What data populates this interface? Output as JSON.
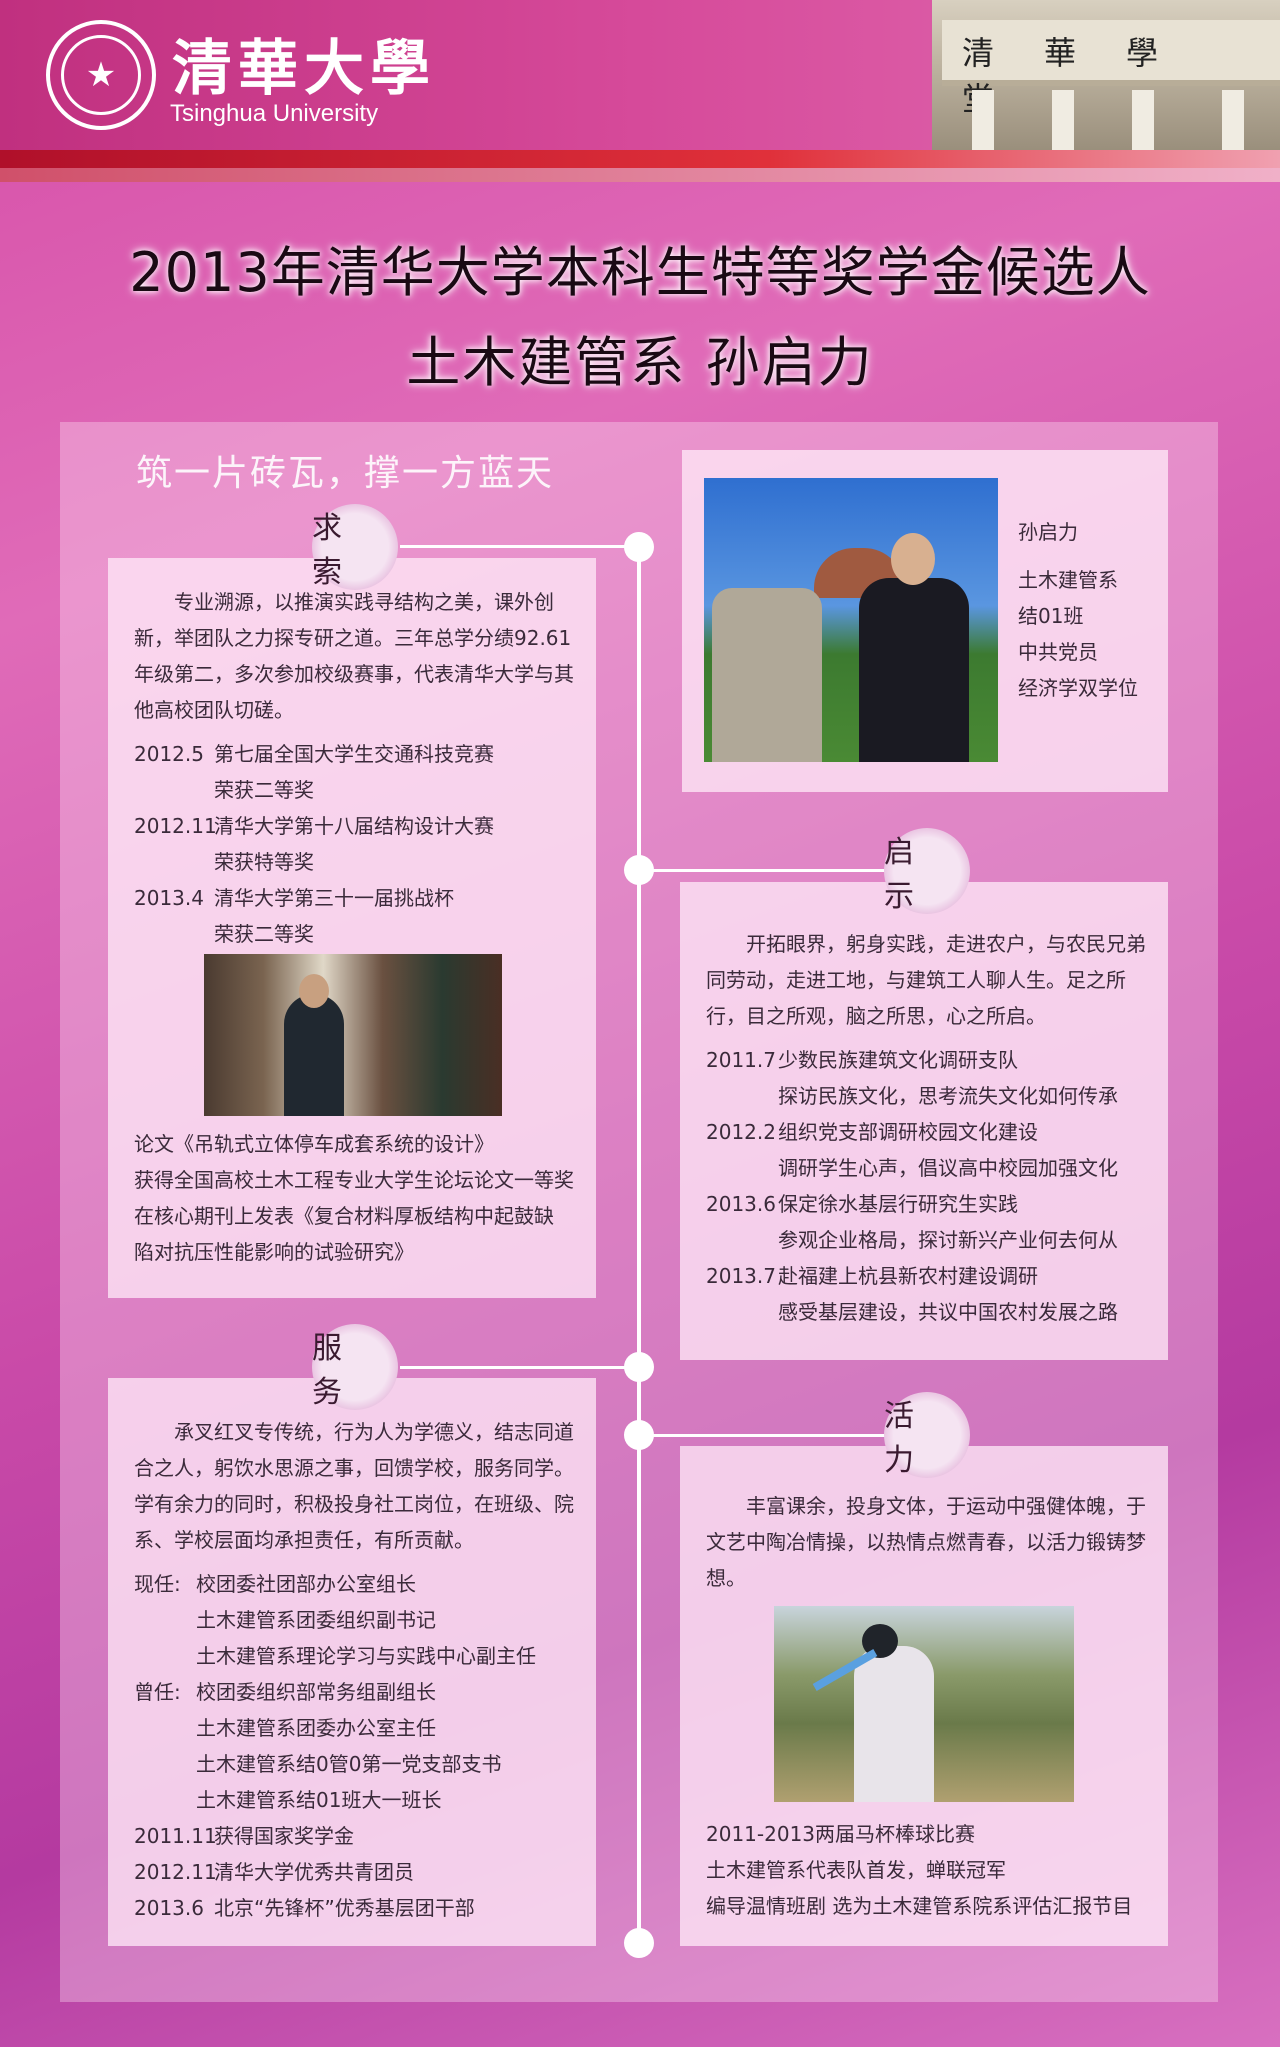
{
  "header": {
    "logo_cn": "清華大學",
    "logo_en": "Tsinghua University",
    "building_sign": "清華學堂"
  },
  "title": {
    "line1": "2013年清华大学本科生特等奖学金候选人",
    "line2": "土木建管系  孙启力"
  },
  "motto": "筑一片砖瓦，撑一方蓝天",
  "profile": {
    "name": "孙启力",
    "dept": "土木建管系",
    "class": "结01班",
    "party": "中共党员",
    "degree": "经济学双学位"
  },
  "qiusuo": {
    "heading": "求 索",
    "intro": "专业溯源，以推演实践寻结构之美，课外创新，举团队之力探专研之道。三年总学分绩92.61年级第二，多次参加校级赛事，代表清华大学与其他高校团队切磋。",
    "awards": [
      {
        "year": "2012.5",
        "event": "第七届全国大学生交通科技竞赛",
        "result": "荣获二等奖"
      },
      {
        "year": "2012.11",
        "event": "清华大学第十八届结构设计大赛",
        "result": "荣获特等奖"
      },
      {
        "year": "2013.4",
        "event": "清华大学第三十一届挑战杯",
        "result": "荣获二等奖"
      }
    ],
    "papers": [
      "论文《吊轨式立体停车成套系统的设计》",
      "获得全国高校土木工程专业大学生论坛论文一等奖",
      "在核心期刊上发表《复合材料厚板结构中起鼓缺",
      "陷对抗压性能影响的试验研究》"
    ]
  },
  "qishi": {
    "heading": "启 示",
    "intro": "开拓眼界，躬身实践，走进农户，与农民兄弟同劳动，走进工地，与建筑工人聊人生。足之所行，目之所观，脑之所思，心之所启。",
    "items": [
      {
        "year": "2011.7",
        "event": "少数民族建筑文化调研支队",
        "detail": "探访民族文化，思考流失文化如何传承"
      },
      {
        "year": "2012.2",
        "event": "组织党支部调研校园文化建设",
        "detail": "调研学生心声，倡议高中校园加强文化"
      },
      {
        "year": "2013.6",
        "event": "保定徐水基层行研究生实践",
        "detail": "参观企业格局，探讨新兴产业何去何从"
      },
      {
        "year": "2013.7",
        "event": "赴福建上杭县新农村建设调研",
        "detail": "感受基层建设，共议中国农村发展之路"
      }
    ]
  },
  "fuwu": {
    "heading": "服 务",
    "intro": "承叉红叉专传统，行为人为学德义，结志同道合之人，躬饮水思源之事，回馈学校，服务同学。学有余力的同时，积极投身社工岗位，在班级、院系、学校层面均承担责任，有所贡献。",
    "current_label": "现任:",
    "current": [
      "校团委社团部办公室组长",
      "土木建管系团委组织副书记",
      "土木建管系理论学习与实践中心副主任"
    ],
    "former_label": "曾任:",
    "former": [
      "校团委组织部常务组副组长",
      "土木建管系团委办公室主任",
      "土木建管系结0管0第一党支部支书",
      "土木建管系结01班大一班长"
    ],
    "honors": [
      {
        "year": "2011.11",
        "text": "获得国家奖学金"
      },
      {
        "year": "2012.11",
        "text": "清华大学优秀共青团员"
      },
      {
        "year": "2013.6",
        "text": "北京“先锋杯”优秀基层团干部"
      }
    ]
  },
  "huoli": {
    "heading": "活 力",
    "intro": "丰富课余，投身文体，于运动中强健体魄，于文艺中陶冶情操，以热情点燃青春，以活力锻铸梦想。",
    "lines": [
      "2011-2013两届马杯棒球比赛",
      "土木建管系代表队首发，蝉联冠军",
      "编导温情班剧 选为土木建管系院系评估汇报节目"
    ]
  }
}
